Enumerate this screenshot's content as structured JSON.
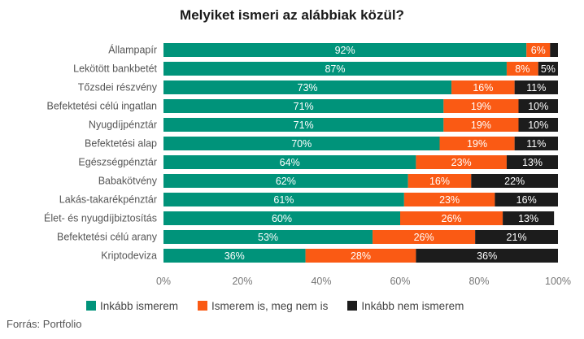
{
  "chart_data": {
    "type": "bar",
    "orientation": "horizontal",
    "stacked": true,
    "title": "Melyiket ismeri az alábbiak közül?",
    "categories": [
      "Állampapír",
      "Lekötött bankbetét",
      "Tőzsdei részvény",
      "Befektetési célú ingatlan",
      "Nyugdíjpénztár",
      "Befektetési alap",
      "Egészségpénztár",
      "Babakötvény",
      "Lakás-takarékpénztár",
      "Élet- és nyugdíjbiztosítás",
      "Befektetési célú arany",
      "Kriptodeviza"
    ],
    "series": [
      {
        "name": "Inkább ismerem",
        "color": "#00937a",
        "values": [
          92,
          87,
          73,
          71,
          71,
          70,
          64,
          62,
          61,
          60,
          53,
          36
        ],
        "labels": [
          "92%",
          "87%",
          "73%",
          "71%",
          "71%",
          "70%",
          "64%",
          "62%",
          "61%",
          "60%",
          "53%",
          "36%"
        ]
      },
      {
        "name": "Ismerem is, meg nem is",
        "color": "#fa5a14",
        "values": [
          6,
          8,
          16,
          19,
          19,
          19,
          23,
          16,
          23,
          26,
          26,
          28
        ],
        "labels": [
          "6%",
          "8%",
          "16%",
          "19%",
          "19%",
          "19%",
          "23%",
          "16%",
          "23%",
          "26%",
          "26%",
          "28%"
        ]
      },
      {
        "name": "Inkább nem ismerem",
        "color": "#1c1c1c",
        "values": [
          2,
          5,
          11,
          10,
          10,
          11,
          13,
          22,
          16,
          13,
          21,
          36
        ],
        "labels": [
          "",
          "5%",
          "11%",
          "10%",
          "10%",
          "11%",
          "13%",
          "22%",
          "16%",
          "13%",
          "21%",
          "36%"
        ]
      }
    ],
    "xlim": [
      0,
      100
    ],
    "xticks": [
      "0%",
      "20%",
      "40%",
      "60%",
      "80%",
      "100%"
    ],
    "xlabel": "",
    "ylabel": "",
    "legend_position": "bottom",
    "grid": false
  },
  "source": "Forrás: Portfolio"
}
